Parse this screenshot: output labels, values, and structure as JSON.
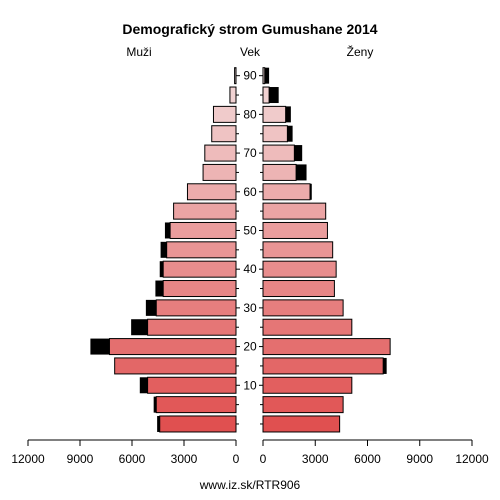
{
  "chart_data": {
    "type": "bar",
    "title": "Demografický strom Gumushane 2014",
    "left_label": "Muži",
    "center_label": "Vek",
    "right_label": "Ženy",
    "footer": "www.iz.sk/RTR906",
    "age_ticks": [
      "10",
      "20",
      "30",
      "40",
      "50",
      "60",
      "70",
      "80",
      "90"
    ],
    "x_ticks_left": [
      "12000",
      "9000",
      "6000",
      "3000",
      "0"
    ],
    "x_ticks_right": [
      "0",
      "3000",
      "6000",
      "9000",
      "12000"
    ],
    "xlim": [
      0,
      12000
    ],
    "age_groups": [
      "0-4",
      "5-9",
      "10-14",
      "15-19",
      "20-24",
      "25-29",
      "30-34",
      "35-39",
      "40-44",
      "45-49",
      "50-54",
      "55-59",
      "60-64",
      "65-69",
      "70-74",
      "75-79",
      "80-84",
      "85-89",
      "90+"
    ],
    "series": [
      {
        "name": "Muži",
        "values": [
          4400,
          4600,
          5100,
          7000,
          7300,
          5100,
          4600,
          4200,
          4200,
          4000,
          3800,
          3600,
          2800,
          1900,
          1800,
          1400,
          1300,
          350,
          80
        ],
        "surplus": [
          150,
          150,
          450,
          0,
          1100,
          950,
          600,
          450,
          200,
          350,
          300,
          0,
          0,
          0,
          0,
          0,
          0,
          0,
          0
        ]
      },
      {
        "name": "Ženy",
        "values": [
          4400,
          4600,
          5100,
          6900,
          7300,
          5100,
          4600,
          4100,
          4200,
          4000,
          3700,
          3600,
          2700,
          1900,
          1800,
          1400,
          1300,
          350,
          100
        ],
        "surplus": [
          0,
          0,
          0,
          200,
          0,
          0,
          0,
          0,
          0,
          0,
          0,
          0,
          100,
          600,
          450,
          300,
          300,
          550,
          250
        ]
      }
    ],
    "colors": {
      "young": "#e05050",
      "old": "#f2dada",
      "surplus": "#000000",
      "stroke": "#000000"
    },
    "grid": false
  }
}
